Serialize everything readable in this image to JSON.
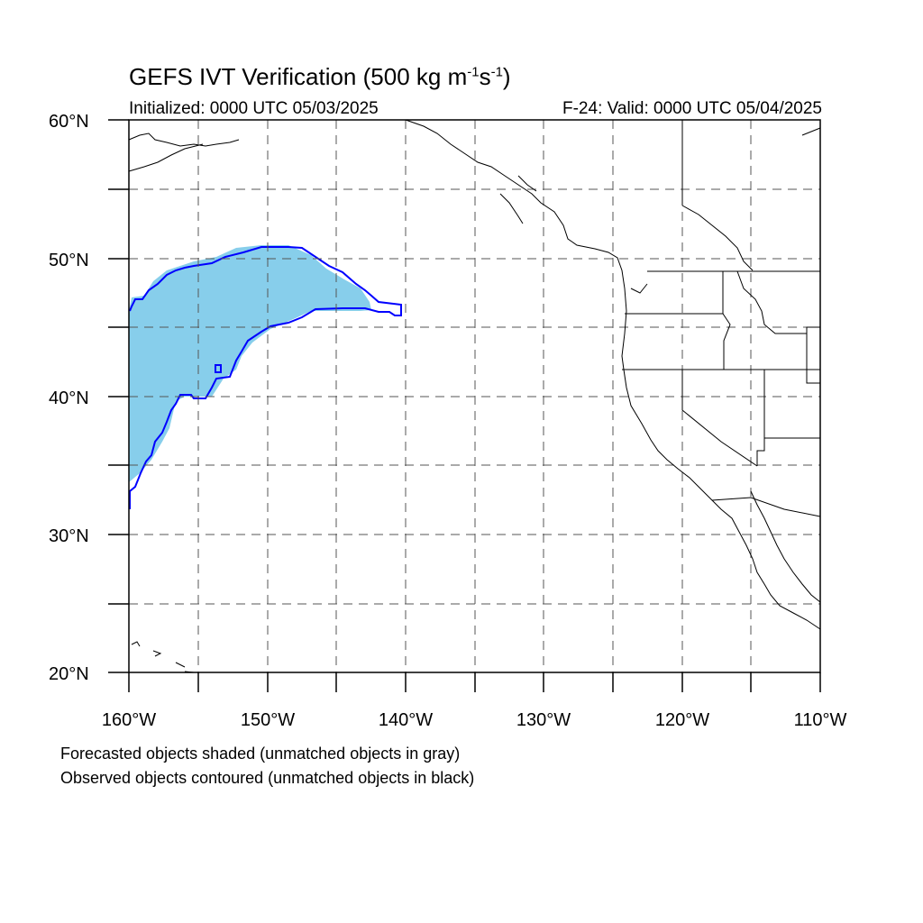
{
  "title": {
    "main": "GEFS IVT Verification (500 kg m",
    "sup1": "-1",
    "mid": "s",
    "sup2": "-1",
    "close": ")"
  },
  "initialized": "Initialized: 0000 UTC 05/03/2025",
  "valid": "F-24: Valid: 0000 UTC 05/04/2025",
  "map": {
    "projection": "cylindrical equidistant",
    "lon_range": [
      -160,
      -110
    ],
    "lat_range": [
      20,
      60
    ],
    "gridlines": "dashed",
    "lat_labels": [
      "60°N",
      "50°N",
      "40°N",
      "30°N",
      "20°N"
    ],
    "lon_labels": [
      "160°W",
      "150°W",
      "140°W",
      "130°W",
      "120°W",
      "110°W"
    ],
    "colors": {
      "forecast_shading": "#87ceeb",
      "observed_contour": "#0000ff",
      "coastline": "#000000",
      "grid": "#555555"
    }
  },
  "legend": {
    "line1": "Forecasted objects shaded (unmatched objects in gray)",
    "line2": "Observed objects contoured (unmatched objects in black)"
  }
}
